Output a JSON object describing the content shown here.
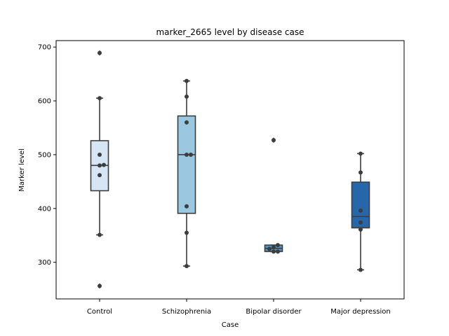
{
  "chart_data": {
    "type": "box",
    "title": "marker_2665 level by disease case",
    "xlabel": "Case",
    "ylabel": "Marker level",
    "ylim": [
      232,
      712
    ],
    "yticks": [
      300,
      400,
      500,
      600,
      700
    ],
    "categories": [
      "Control",
      "Schizophrenia",
      "Bipolar disorder",
      "Major depression"
    ],
    "colors": [
      "#d6e6f4",
      "#9ac8e0",
      "#4a98c9",
      "#2666ab"
    ],
    "boxes": [
      {
        "q1": 433,
        "median": 480,
        "q3": 526,
        "whisker_low": 351,
        "whisker_high": 605,
        "outliers": [
          689,
          256
        ]
      },
      {
        "q1": 391,
        "median": 500,
        "q3": 572,
        "whisker_low": 293,
        "whisker_high": 637,
        "outliers": []
      },
      {
        "q1": 320,
        "median": 326,
        "q3": 332,
        "whisker_low": 320,
        "whisker_high": 332,
        "outliers": [
          527
        ]
      },
      {
        "q1": 364,
        "median": 385,
        "q3": 449,
        "whisker_low": 286,
        "whisker_high": 502,
        "outliers": []
      }
    ],
    "points": [
      [
        689,
        605,
        500,
        481,
        480,
        462,
        351,
        256
      ],
      [
        637,
        608,
        560,
        500,
        500,
        404,
        355,
        293
      ],
      [
        527,
        332,
        328,
        325,
        320,
        320
      ],
      [
        502,
        467,
        396,
        374,
        361,
        286
      ]
    ]
  }
}
